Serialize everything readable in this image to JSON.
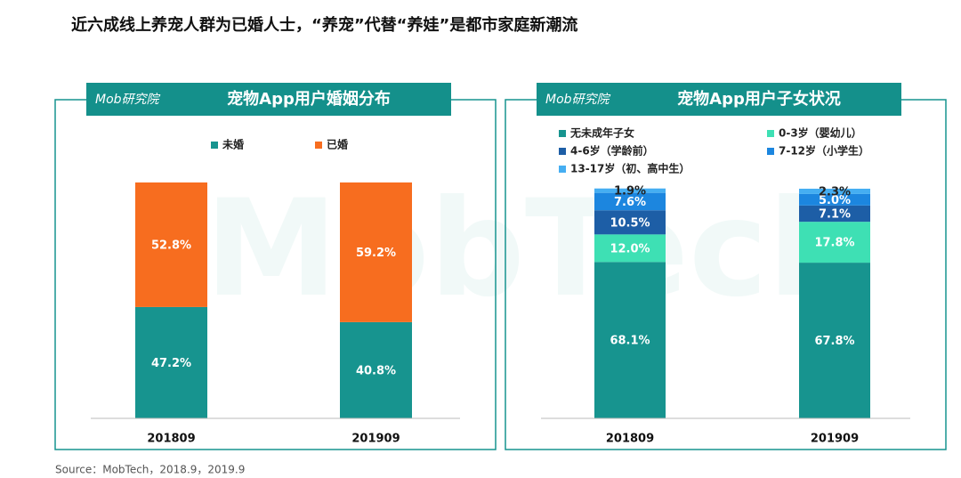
{
  "title": "近六成线上养宠人群为已婚人士，“养宠”代替“养娃”是都市家庭新潮流",
  "source": "Source：MobTech，2018.9，2019.9",
  "watermark": "MobTech",
  "chart_data": [
    {
      "type": "stacked_bar",
      "brand": "Mob研究院",
      "title": "宠物App用户婚姻分布",
      "categories": [
        "201809",
        "201909"
      ],
      "ylim": [
        0,
        100
      ],
      "series": [
        {
          "name": "未婚",
          "color": "#17948f",
          "label_color": "#ffffff",
          "values": [
            47.2,
            40.8
          ],
          "value_labels": [
            "47.2%",
            "40.8%"
          ]
        },
        {
          "name": "已婚",
          "color": "#f76d1f",
          "label_color": "#ffffff",
          "values": [
            52.8,
            59.2
          ],
          "value_labels": [
            "52.8%",
            "59.2%"
          ]
        }
      ]
    },
    {
      "type": "stacked_bar",
      "brand": "Mob研究院",
      "title": "宠物App用户子女状况",
      "categories": [
        "201809",
        "201909"
      ],
      "ylim": [
        0,
        100
      ],
      "series": [
        {
          "name": "无未成年子女",
          "color": "#17948f",
          "label_color": "#ffffff",
          "values": [
            68.1,
            67.8
          ],
          "value_labels": [
            "68.1%",
            "67.8%"
          ]
        },
        {
          "name": "0-3岁（婴幼儿）",
          "color": "#3ee0b4",
          "label_color": "#ffffff",
          "values": [
            12.0,
            17.8
          ],
          "value_labels": [
            "12.0%",
            "17.8%"
          ]
        },
        {
          "name": "4-6岁（学龄前）",
          "color": "#1d5ea6",
          "label_color": "#ffffff",
          "values": [
            10.5,
            7.1
          ],
          "value_labels": [
            "10.5%",
            "7.1%"
          ]
        },
        {
          "name": "7-12岁（小学生）",
          "color": "#1c86df",
          "label_color": "#ffffff",
          "values": [
            7.6,
            5.0
          ],
          "value_labels": [
            "7.6%",
            "5.0%"
          ]
        },
        {
          "name": "13-17岁（初、高中生）",
          "color": "#45aef2",
          "label_color": "#222222",
          "values": [
            1.9,
            2.3
          ],
          "value_labels": [
            "1.9%",
            "2.3%"
          ]
        }
      ]
    }
  ]
}
